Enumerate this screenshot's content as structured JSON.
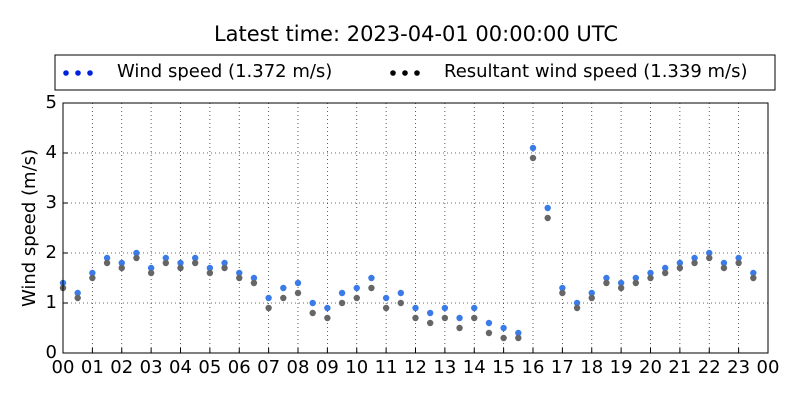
{
  "chart_data": {
    "type": "scatter",
    "title": "Latest time: 2023-04-01 00:00:00 UTC",
    "ylabel": "Wind speed (m/s)",
    "x": [
      0,
      0.5,
      1,
      1.5,
      2,
      2.5,
      3,
      3.5,
      4,
      4.5,
      5,
      5.5,
      6,
      6.5,
      7,
      7.5,
      8,
      8.5,
      9,
      9.5,
      10,
      10.5,
      11,
      11.5,
      12,
      12.5,
      13,
      13.5,
      14,
      14.5,
      15,
      15.5,
      16,
      16.5,
      17,
      17.5,
      18,
      18.5,
      19,
      19.5,
      20,
      20.5,
      21,
      21.5,
      22,
      22.5,
      23,
      23.5
    ],
    "series": [
      {
        "name": "Wind speed (1.372 m/s)",
        "color": "#3b7be8",
        "values": [
          1.4,
          1.2,
          1.6,
          1.9,
          1.8,
          2.0,
          1.7,
          1.9,
          1.8,
          1.9,
          1.7,
          1.8,
          1.6,
          1.5,
          1.1,
          1.3,
          1.4,
          1.0,
          0.9,
          1.2,
          1.3,
          1.5,
          1.1,
          1.2,
          0.9,
          0.8,
          0.9,
          0.7,
          0.9,
          0.6,
          0.5,
          0.4,
          4.1,
          2.9,
          1.3,
          1.0,
          1.2,
          1.5,
          1.4,
          1.5,
          1.6,
          1.7,
          1.8,
          1.9,
          2.0,
          1.8,
          1.9,
          1.6
        ]
      },
      {
        "name": "Resultant wind speed (1.339 m/s)",
        "color": "#666666",
        "values": [
          1.3,
          1.1,
          1.5,
          1.8,
          1.7,
          1.9,
          1.6,
          1.8,
          1.7,
          1.8,
          1.6,
          1.7,
          1.5,
          1.4,
          0.9,
          1.1,
          1.2,
          0.8,
          0.7,
          1.0,
          1.1,
          1.3,
          0.9,
          1.0,
          0.7,
          0.6,
          0.7,
          0.5,
          0.7,
          0.4,
          0.3,
          0.3,
          3.9,
          2.7,
          1.2,
          0.9,
          1.1,
          1.4,
          1.3,
          1.4,
          1.5,
          1.6,
          1.7,
          1.8,
          1.9,
          1.7,
          1.8,
          1.5
        ]
      }
    ],
    "legend_colors": [
      "#0022dd",
      "#000000"
    ],
    "xlim": [
      0,
      24
    ],
    "xticks": [
      {
        "value": 0,
        "label": "00"
      },
      {
        "value": 1,
        "label": "01"
      },
      {
        "value": 2,
        "label": "02"
      },
      {
        "value": 3,
        "label": "03"
      },
      {
        "value": 4,
        "label": "04"
      },
      {
        "value": 5,
        "label": "05"
      },
      {
        "value": 6,
        "label": "06"
      },
      {
        "value": 7,
        "label": "07"
      },
      {
        "value": 8,
        "label": "08"
      },
      {
        "value": 9,
        "label": "09"
      },
      {
        "value": 10,
        "label": "10"
      },
      {
        "value": 11,
        "label": "11"
      },
      {
        "value": 12,
        "label": "12"
      },
      {
        "value": 13,
        "label": "13"
      },
      {
        "value": 14,
        "label": "14"
      },
      {
        "value": 15,
        "label": "15"
      },
      {
        "value": 16,
        "label": "16"
      },
      {
        "value": 17,
        "label": "17"
      },
      {
        "value": 18,
        "label": "18"
      },
      {
        "value": 19,
        "label": "19"
      },
      {
        "value": 20,
        "label": "20"
      },
      {
        "value": 21,
        "label": "21"
      },
      {
        "value": 22,
        "label": "22"
      },
      {
        "value": 23,
        "label": "23"
      },
      {
        "value": 24,
        "label": "00"
      }
    ],
    "ylim": [
      0,
      5
    ],
    "yticks": [
      0,
      1,
      2,
      3,
      4,
      5
    ],
    "grid": true
  }
}
